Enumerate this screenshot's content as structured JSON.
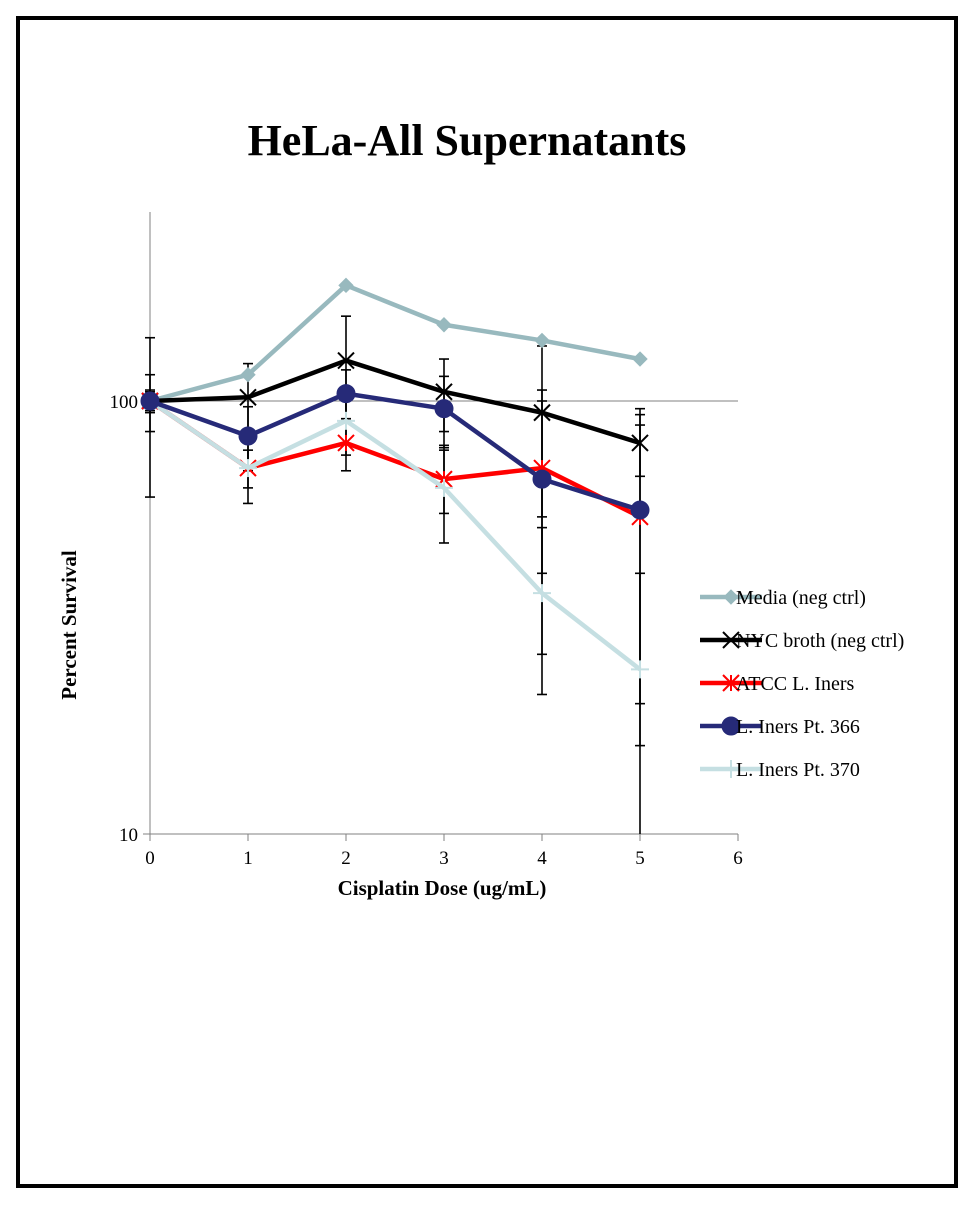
{
  "chart_data": {
    "type": "line",
    "title": "HeLa-All Supernatants",
    "xlabel": "Cisplatin Dose (ug/mL)",
    "ylabel": "Percent Survival",
    "x": [
      0,
      1,
      2,
      3,
      4,
      5
    ],
    "xlim": [
      0,
      6
    ],
    "x_ticks": [
      "0",
      "1",
      "2",
      "3",
      "4",
      "5",
      "6"
    ],
    "ylim": [
      10,
      200
    ],
    "y_scale": "log",
    "y_ticks": [
      "10",
      "100"
    ],
    "grid": "horizontal line at 100 only",
    "legend_position": "right",
    "series": [
      {
        "name": "Media (neg ctrl)",
        "color": "#98B9BE",
        "marker": "diamond",
        "values": [
          100,
          115,
          185,
          150,
          138,
          125
        ],
        "error": [
          null,
          null,
          null,
          null,
          null,
          null
        ]
      },
      {
        "name": "NYC broth (neg ctrl)",
        "color": "#000000",
        "marker": "x",
        "values": [
          100,
          102,
          124,
          105,
          94,
          80
        ],
        "error": [
          40,
          20,
          33,
          20,
          40,
          13
        ]
      },
      {
        "name": "ATCC L. Iners",
        "color": "#FF0000",
        "marker": "asterisk",
        "values": [
          100,
          70,
          80,
          66,
          70,
          54
        ],
        "error": [
          15,
          7,
          11,
          11,
          30,
          34
        ]
      },
      {
        "name": "L. Iners Pt. 366",
        "color": "#262A78",
        "marker": "circle",
        "values": [
          100,
          83,
          104,
          96,
          66,
          56
        ],
        "error": [
          6,
          14,
          14,
          18,
          40,
          40
        ]
      },
      {
        "name": "L. Iners Pt. 370",
        "color": "#C5DFE2",
        "marker": "plus",
        "values": [
          100,
          70,
          90,
          63,
          36,
          24
        ],
        "error": [
          5,
          12,
          15,
          16,
          15,
          16
        ]
      }
    ]
  },
  "colors": {
    "frame": "#000000",
    "gridline": "#808080",
    "axis": "#808080"
  }
}
